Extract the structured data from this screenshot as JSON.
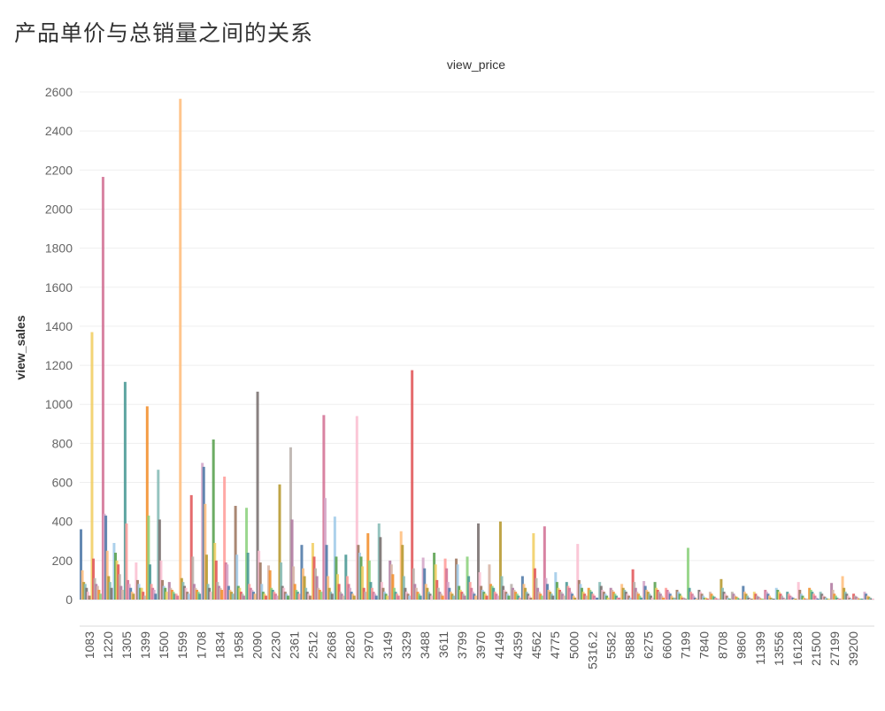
{
  "page": {
    "title": "产品单价与总销量之间的关系"
  },
  "chart_data": {
    "type": "bar",
    "title": "产品单价与总销量之间的关系",
    "header_label": "view_price",
    "xlabel": "",
    "ylabel": "view_sales",
    "ylim": [
      -100,
      2700
    ],
    "yticks": [
      0,
      200,
      400,
      600,
      800,
      1000,
      1200,
      1400,
      1600,
      1800,
      2000,
      2200,
      2400,
      2600
    ],
    "grid": true,
    "legend": "none",
    "xtick_labels": [
      "1083",
      "1220",
      "1305",
      "1399",
      "1500",
      "1599",
      "1708",
      "1834",
      "1958",
      "2090",
      "2230",
      "2361",
      "2512",
      "2668",
      "2820",
      "2970",
      "3149",
      "3329",
      "3488",
      "3611",
      "3799",
      "3970",
      "4149",
      "4359",
      "4562",
      "4775",
      "5000",
      "5316.2",
      "5582",
      "5888",
      "6275",
      "6600",
      "7199",
      "7840",
      "8708",
      "9860",
      "11399",
      "13556",
      "16128",
      "21500",
      "27199",
      "39200"
    ],
    "colors": [
      "#4e79a7",
      "#a0cbe8",
      "#f28e2b",
      "#ffbe7d",
      "#59a14f",
      "#8cd17d",
      "#b6992d",
      "#f1ce63",
      "#499894",
      "#86bcb6",
      "#e15759",
      "#ff9d9a",
      "#79706e",
      "#bab0ac",
      "#d37295",
      "#fabfd2",
      "#b07aa1",
      "#d4a6c8",
      "#9d7660",
      "#d7b5a6"
    ],
    "series": [
      {
        "x": 0,
        "values": [
          360,
          150,
          80,
          40,
          20,
          90,
          60
        ]
      },
      {
        "x": 1,
        "values": [
          1370,
          210,
          80,
          50,
          110,
          30,
          70
        ]
      },
      {
        "x": 2,
        "values": [
          2165,
          440,
          250,
          120,
          60,
          430,
          90
        ]
      },
      {
        "x": 3,
        "values": [
          240,
          290,
          180,
          200,
          70,
          130,
          50
        ]
      },
      {
        "x": 4,
        "values": [
          1115,
          390,
          80,
          60,
          30,
          100,
          40
        ]
      },
      {
        "x": 5,
        "values": [
          190,
          100,
          60,
          80,
          40,
          20,
          60
        ]
      },
      {
        "x": 6,
        "values": [
          990,
          430,
          180,
          60,
          80,
          50,
          30
        ]
      },
      {
        "x": 7,
        "values": [
          665,
          410,
          100,
          200,
          70,
          40,
          60
        ]
      },
      {
        "x": 8,
        "values": [
          90,
          40,
          30,
          60,
          20,
          30,
          50
        ]
      },
      {
        "x": 9,
        "values": [
          2565,
          110,
          60,
          90,
          40,
          30,
          70
        ]
      },
      {
        "x": 10,
        "values": [
          535,
          220,
          80,
          60,
          50,
          30,
          40
        ]
      },
      {
        "x": 11,
        "values": [
          700,
          680,
          490,
          230,
          80,
          60,
          40
        ]
      },
      {
        "x": 12,
        "values": [
          820,
          290,
          200,
          90,
          60,
          50,
          70
        ]
      },
      {
        "x": 13,
        "values": [
          630,
          190,
          180,
          70,
          50,
          40,
          30
        ]
      },
      {
        "x": 14,
        "values": [
          480,
          230,
          70,
          60,
          30,
          40,
          20
        ]
      },
      {
        "x": 15,
        "values": [
          470,
          240,
          80,
          50,
          60,
          30,
          40
        ]
      },
      {
        "x": 16,
        "values": [
          1065,
          250,
          190,
          80,
          40,
          30,
          20
        ]
      },
      {
        "x": 17,
        "values": [
          175,
          150,
          60,
          40,
          30,
          20,
          50
        ]
      },
      {
        "x": 18,
        "values": [
          590,
          190,
          60,
          70,
          40,
          30,
          20
        ]
      },
      {
        "x": 19,
        "values": [
          780,
          410,
          170,
          80,
          50,
          40,
          30
        ]
      },
      {
        "x": 20,
        "values": [
          280,
          160,
          120,
          60,
          40,
          30,
          20
        ]
      },
      {
        "x": 21,
        "values": [
          220,
          290,
          160,
          120,
          60,
          40,
          50
        ]
      },
      {
        "x": 22,
        "values": [
          945,
          520,
          280,
          120,
          60,
          40,
          30
        ]
      },
      {
        "x": 23,
        "values": [
          425,
          220,
          130,
          80,
          40,
          30,
          20
        ]
      },
      {
        "x": 24,
        "values": [
          230,
          120,
          80,
          60,
          40,
          30,
          20
        ]
      },
      {
        "x": 25,
        "values": [
          940,
          280,
          240,
          220,
          170,
          60,
          40
        ]
      },
      {
        "x": 26,
        "values": [
          340,
          200,
          90,
          60,
          40,
          30,
          20
        ]
      },
      {
        "x": 27,
        "values": [
          390,
          320,
          90,
          60,
          40,
          30,
          20
        ]
      },
      {
        "x": 28,
        "values": [
          200,
          180,
          130,
          60,
          40,
          30,
          20
        ]
      },
      {
        "x": 29,
        "values": [
          350,
          280,
          120,
          60,
          40,
          30,
          20
        ]
      },
      {
        "x": 30,
        "values": [
          1175,
          160,
          80,
          60,
          40,
          30,
          20
        ]
      },
      {
        "x": 31,
        "values": [
          215,
          160,
          80,
          60,
          40,
          30,
          20
        ]
      },
      {
        "x": 32,
        "values": [
          240,
          180,
          100,
          60,
          40,
          30,
          20
        ]
      },
      {
        "x": 33,
        "values": [
          210,
          160,
          90,
          60,
          40,
          30,
          20
        ]
      },
      {
        "x": 34,
        "values": [
          210,
          180,
          70,
          50,
          40,
          30,
          20
        ]
      },
      {
        "x": 35,
        "values": [
          220,
          120,
          90,
          60,
          40,
          30,
          20
        ]
      },
      {
        "x": 36,
        "values": [
          390,
          140,
          70,
          50,
          40,
          30,
          20
        ]
      },
      {
        "x": 37,
        "values": [
          180,
          80,
          70,
          60,
          40,
          30,
          20
        ]
      },
      {
        "x": 38,
        "values": [
          400,
          120,
          70,
          50,
          40,
          30,
          20
        ]
      },
      {
        "x": 39,
        "values": [
          80,
          60,
          50,
          40,
          30,
          20,
          10
        ]
      },
      {
        "x": 40,
        "values": [
          120,
          80,
          60,
          40,
          30,
          20,
          10
        ]
      },
      {
        "x": 41,
        "values": [
          340,
          160,
          110,
          60,
          40,
          30,
          20
        ]
      },
      {
        "x": 42,
        "values": [
          375,
          110,
          80,
          50,
          40,
          30,
          20
        ]
      },
      {
        "x": 43,
        "values": [
          140,
          90,
          60,
          50,
          40,
          30,
          20
        ]
      },
      {
        "x": 44,
        "values": [
          90,
          70,
          60,
          40,
          30,
          20,
          10
        ]
      },
      {
        "x": 45,
        "values": [
          285,
          100,
          80,
          60,
          40,
          30,
          20
        ]
      },
      {
        "x": 46,
        "values": [
          60,
          50,
          40,
          30,
          20,
          10,
          10
        ]
      },
      {
        "x": 47,
        "values": [
          90,
          70,
          50,
          40,
          30,
          20,
          10
        ]
      },
      {
        "x": 48,
        "values": [
          60,
          50,
          40,
          30,
          20,
          10,
          10
        ]
      },
      {
        "x": 49,
        "values": [
          80,
          60,
          50,
          40,
          30,
          20,
          10
        ]
      },
      {
        "x": 50,
        "values": [
          155,
          90,
          60,
          40,
          30,
          20,
          10
        ]
      },
      {
        "x": 51,
        "values": [
          95,
          70,
          50,
          40,
          30,
          20,
          10
        ]
      },
      {
        "x": 52,
        "values": [
          90,
          60,
          50,
          40,
          30,
          20,
          10
        ]
      },
      {
        "x": 53,
        "values": [
          60,
          50,
          40,
          30,
          20,
          10,
          10
        ]
      },
      {
        "x": 54,
        "values": [
          50,
          40,
          30,
          20,
          10,
          10,
          5
        ]
      },
      {
        "x": 55,
        "values": [
          265,
          60,
          40,
          30,
          20,
          10,
          5
        ]
      },
      {
        "x": 56,
        "values": [
          50,
          40,
          30,
          20,
          10,
          10,
          5
        ]
      },
      {
        "x": 57,
        "values": [
          40,
          30,
          20,
          15,
          10,
          5,
          5
        ]
      },
      {
        "x": 58,
        "values": [
          105,
          60,
          40,
          30,
          20,
          10,
          5
        ]
      },
      {
        "x": 59,
        "values": [
          40,
          30,
          20,
          15,
          10,
          5,
          5
        ]
      },
      {
        "x": 60,
        "values": [
          70,
          40,
          30,
          20,
          10,
          5,
          5
        ]
      },
      {
        "x": 61,
        "values": [
          40,
          30,
          20,
          15,
          10,
          5,
          5
        ]
      },
      {
        "x": 62,
        "values": [
          50,
          40,
          30,
          20,
          10,
          5,
          5
        ]
      },
      {
        "x": 63,
        "values": [
          60,
          50,
          40,
          30,
          20,
          10,
          5
        ]
      },
      {
        "x": 64,
        "values": [
          40,
          30,
          20,
          15,
          10,
          5,
          5
        ]
      },
      {
        "x": 65,
        "values": [
          90,
          50,
          30,
          20,
          10,
          5,
          5
        ]
      },
      {
        "x": 66,
        "values": [
          60,
          50,
          40,
          30,
          20,
          10,
          5
        ]
      },
      {
        "x": 67,
        "values": [
          40,
          30,
          20,
          15,
          10,
          5,
          5
        ]
      },
      {
        "x": 68,
        "values": [
          85,
          50,
          30,
          20,
          10,
          5,
          5
        ]
      },
      {
        "x": 69,
        "values": [
          120,
          60,
          40,
          30,
          20,
          10,
          5
        ]
      },
      {
        "x": 70,
        "values": [
          30,
          20,
          15,
          10,
          5,
          5,
          5
        ]
      },
      {
        "x": 71,
        "values": [
          40,
          30,
          20,
          15,
          10,
          5,
          5
        ]
      }
    ]
  }
}
